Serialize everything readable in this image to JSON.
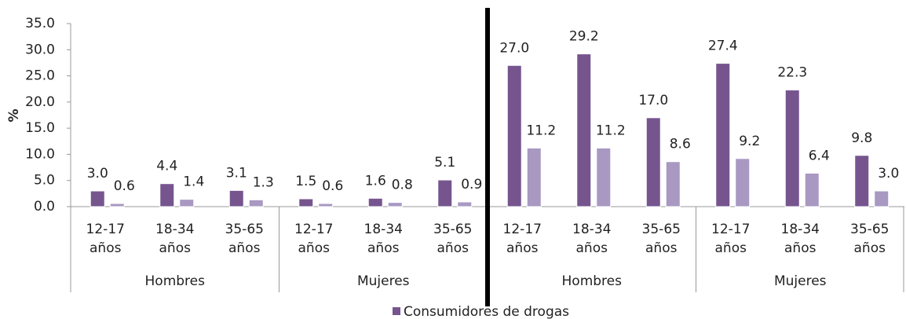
{
  "chart_data": {
    "type": "bar",
    "y_label": "%",
    "categories": [
      "12-17 años",
      "18-34 años",
      "35-65 años",
      "12-17 años",
      "18-34 años",
      "35-65 años",
      "12-17 años",
      "18-34 años",
      "35-65 años",
      "12-17 años",
      "18-34 años",
      "35-65 años"
    ],
    "groups": [
      "Hombres",
      "Mujeres",
      "Hombres",
      "Mujeres"
    ],
    "series": [
      {
        "name": "Consumidores de drogas",
        "color": "#76558f",
        "values": [
          3.0,
          4.4,
          3.1,
          1.5,
          1.6,
          5.1,
          27.0,
          29.2,
          17.0,
          27.4,
          22.3,
          9.8
        ],
        "value_labels": [
          "3.0",
          "4.4",
          "3.1",
          "1.5",
          "1.6",
          "5.1",
          "27.0",
          "29.2",
          "17.0",
          "27.4",
          "22.3",
          "9.8"
        ]
      },
      {
        "color": "#a898c2",
        "values": [
          0.6,
          1.4,
          1.3,
          0.6,
          0.8,
          0.9,
          11.2,
          11.2,
          8.6,
          9.2,
          6.4,
          3.0
        ],
        "value_labels": [
          "0.6",
          "1.4",
          "1.3",
          "0.6",
          "0.8",
          "0.9",
          "11.2",
          "11.2",
          "8.6",
          "9.2",
          "6.4",
          "3.0"
        ]
      }
    ],
    "ylim": [
      0,
      35
    ],
    "yticks": [
      {
        "value": 0,
        "label": "0.0"
      },
      {
        "value": 5,
        "label": "5.0"
      },
      {
        "value": 10,
        "label": "10.0"
      },
      {
        "value": 15,
        "label": "15.0"
      },
      {
        "value": 20,
        "label": "20.0"
      },
      {
        "value": 25,
        "label": "25.0"
      },
      {
        "value": 30,
        "label": "30.0"
      },
      {
        "value": 35,
        "label": "35.0"
      }
    ],
    "grid": false
  }
}
